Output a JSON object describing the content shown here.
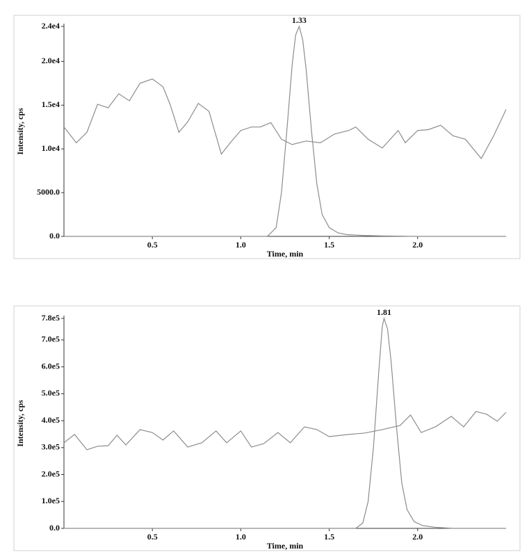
{
  "chart_data": [
    {
      "type": "line",
      "x_label": "Time, min",
      "y_label": "Intensity, cps",
      "xlim": [
        0,
        2.5
      ],
      "ylim": [
        0,
        24000
      ],
      "xticks": [
        0.5,
        {
          "value": 1.0,
          "label": "1.0"
        },
        1.5,
        {
          "value": 2.0,
          "label": "2.0"
        }
      ],
      "yticks": [
        {
          "value": 0,
          "label": "0.0"
        },
        {
          "value": 5000,
          "label": "5000.0"
        },
        {
          "value": 10000,
          "label": "1.0e4"
        },
        {
          "value": 15000,
          "label": "1.5e4"
        },
        {
          "value": 20000,
          "label": "2.0e4"
        },
        {
          "value": 24000,
          "label": "2.4e4"
        }
      ],
      "grid": false,
      "annotations": [
        {
          "text": "1.33",
          "x": 1.33,
          "y": 24000
        }
      ],
      "series": [
        {
          "color": "#8c8c8c",
          "x": [
            0.0,
            0.07,
            0.13,
            0.19,
            0.25,
            0.31,
            0.37,
            0.43,
            0.5,
            0.56,
            0.6,
            0.65,
            0.7,
            0.76,
            0.82,
            0.89,
            0.94,
            1.0,
            1.06,
            1.11,
            1.17,
            1.23,
            1.29,
            1.37,
            1.45,
            1.53,
            1.61,
            1.65,
            1.72,
            1.8,
            1.89,
            1.93,
            2.0,
            2.06,
            2.13,
            2.2,
            2.27,
            2.36,
            2.43,
            2.5
          ],
          "values": [
            12500,
            10700,
            11900,
            15100,
            14700,
            16300,
            15500,
            17500,
            18000,
            17100,
            15100,
            11900,
            13100,
            15200,
            14300,
            9400,
            10700,
            12100,
            12500,
            12500,
            13000,
            11100,
            10500,
            10900,
            10700,
            11700,
            12100,
            12500,
            11100,
            10100,
            12100,
            10700,
            12100,
            12200,
            12700,
            11500,
            11100,
            8900,
            11500,
            14500
          ]
        },
        {
          "color": "#8c8c8c",
          "x": [
            0,
            1.15,
            1.2,
            1.23,
            1.26,
            1.29,
            1.31,
            1.33,
            1.35,
            1.37,
            1.4,
            1.43,
            1.46,
            1.5,
            1.55,
            1.6,
            1.7,
            1.8,
            2.0,
            2.5
          ],
          "values": [
            0,
            0,
            1000,
            5000,
            12000,
            19500,
            23000,
            24000,
            22500,
            19000,
            12000,
            6000,
            2500,
            1000,
            400,
            200,
            100,
            50,
            0,
            0
          ]
        }
      ]
    },
    {
      "type": "line",
      "x_label": "Time, min",
      "y_label": "Intensity, cps",
      "xlim": [
        0,
        2.5
      ],
      "ylim": [
        0,
        780000
      ],
      "xticks": [
        0.5,
        {
          "value": 1.0,
          "label": "1.0"
        },
        1.5,
        {
          "value": 2.0,
          "label": "2.0"
        }
      ],
      "yticks": [
        {
          "value": 0,
          "label": "0.0"
        },
        {
          "value": 100000,
          "label": "1.0e5"
        },
        {
          "value": 200000,
          "label": "2.0e5"
        },
        {
          "value": 300000,
          "label": "3.0e5"
        },
        {
          "value": 400000,
          "label": "4.0e5"
        },
        {
          "value": 500000,
          "label": "5.0e5"
        },
        {
          "value": 600000,
          "label": "6.0e5"
        },
        {
          "value": 700000,
          "label": "7.0e5"
        },
        {
          "value": 780000,
          "label": "7.8e5"
        }
      ],
      "grid": false,
      "annotations": [
        {
          "text": "1.81",
          "x": 1.81,
          "y": 780000
        }
      ],
      "series": [
        {
          "color": "#8c8c8c",
          "x": [
            0.0,
            0.06,
            0.13,
            0.19,
            0.25,
            0.3,
            0.35,
            0.43,
            0.5,
            0.56,
            0.62,
            0.7,
            0.78,
            0.86,
            0.92,
            1.0,
            1.06,
            1.13,
            1.21,
            1.28,
            1.36,
            1.43,
            1.5,
            1.61,
            1.7,
            1.8,
            1.9,
            1.96,
            2.02,
            2.1,
            2.19,
            2.26,
            2.33,
            2.39,
            2.45,
            2.5
          ],
          "values": [
            318000,
            349000,
            292000,
            305000,
            307000,
            346000,
            310000,
            367000,
            356000,
            328000,
            362000,
            302000,
            318000,
            362000,
            318000,
            362000,
            302000,
            315000,
            356000,
            318000,
            377000,
            367000,
            341000,
            349000,
            354000,
            367000,
            382000,
            421000,
            356000,
            377000,
            416000,
            377000,
            434000,
            424000,
            398000,
            431000
          ]
        },
        {
          "color": "#8c8c8c",
          "x": [
            0,
            1.65,
            1.69,
            1.72,
            1.75,
            1.78,
            1.8,
            1.81,
            1.83,
            1.85,
            1.88,
            1.91,
            1.94,
            1.98,
            2.03,
            2.1,
            2.2,
            2.5
          ],
          "values": [
            0,
            0,
            20000,
            100000,
            300000,
            580000,
            750000,
            780000,
            740000,
            620000,
            380000,
            170000,
            70000,
            25000,
            10000,
            4000,
            0,
            0
          ]
        }
      ]
    }
  ]
}
